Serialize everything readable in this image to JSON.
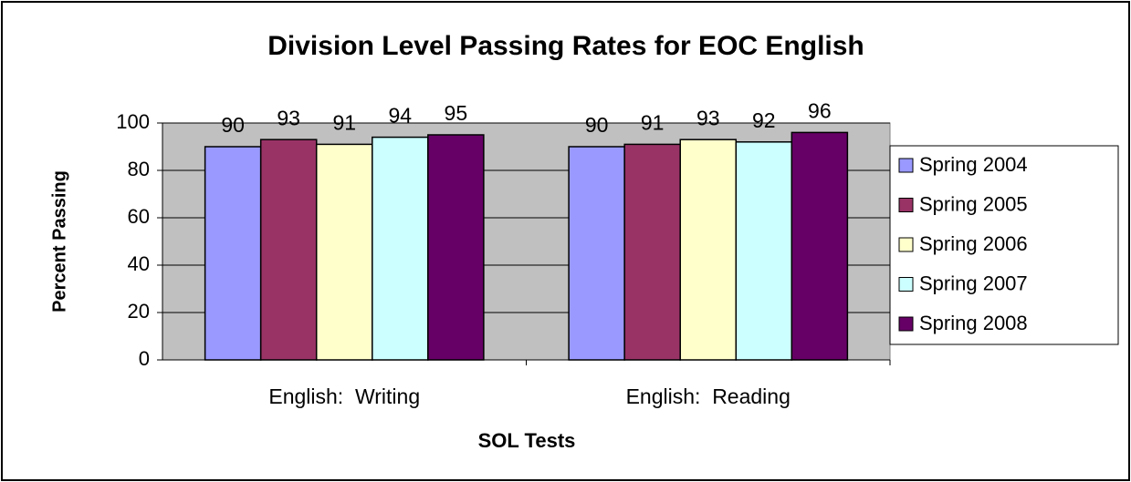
{
  "chart_data": {
    "type": "bar",
    "title": "Division Level Passing Rates for EOC English",
    "x_label": "SOL Tests",
    "y_label": "Percent Passing",
    "categories": [
      "English:  Writing",
      "English:  Reading"
    ],
    "series": [
      {
        "name": "Spring 2004",
        "color": "#9999ff",
        "values": [
          90,
          90
        ]
      },
      {
        "name": "Spring 2005",
        "color": "#993366",
        "values": [
          93,
          91
        ]
      },
      {
        "name": "Spring 2006",
        "color": "#ffffcc",
        "values": [
          91,
          93
        ]
      },
      {
        "name": "Spring 2007",
        "color": "#ccffff",
        "values": [
          94,
          92
        ]
      },
      {
        "name": "Spring 2008",
        "color": "#660066",
        "values": [
          95,
          96
        ]
      }
    ],
    "ylim": [
      0,
      100
    ],
    "yticks": [
      0,
      20,
      40,
      60,
      80,
      100
    ],
    "grid": true,
    "legend": "right"
  }
}
